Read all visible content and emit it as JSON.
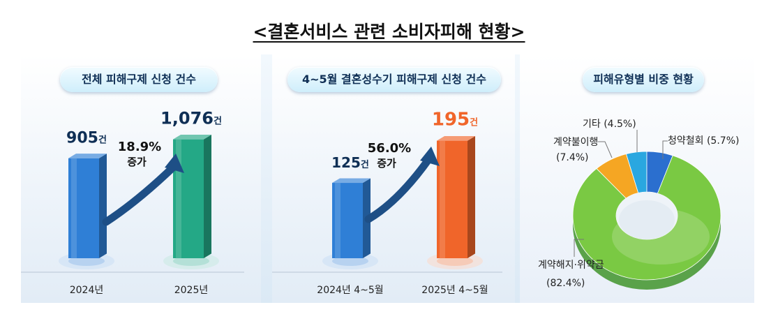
{
  "title": "<결혼서비스 관련 소비자피해 현황>",
  "colors": {
    "blue_bar": "#2f7fd6",
    "green_bar": "#24a886",
    "orange_bar": "#f0652a",
    "arrow": "#1e4f86",
    "text_dark": "#0f2f55"
  },
  "chart_data": [
    {
      "type": "bar",
      "title": "전체 피해구제 신청 건수",
      "categories": [
        "2024년",
        "2025년"
      ],
      "values": [
        905,
        1076
      ],
      "value_labels": [
        "905건",
        "1,076건"
      ],
      "annotation": {
        "pct": "18.9%",
        "word": "증가"
      },
      "ylim": [
        0,
        1200
      ]
    },
    {
      "type": "bar",
      "title": "4~5월 결혼성수기 피해구제 신청 건수",
      "categories": [
        "2024년 4~5월",
        "2025년 4~5월"
      ],
      "values": [
        125,
        195
      ],
      "value_labels": [
        "125건",
        "195건"
      ],
      "annotation": {
        "pct": "56.0%",
        "word": "증가"
      },
      "ylim": [
        0,
        220
      ]
    },
    {
      "type": "pie",
      "title": "피해유형별 비중 현황",
      "slices": [
        {
          "label": "계약해지·위약금",
          "value": 82.4,
          "value_label": "(82.4%)",
          "color": "#7ac943"
        },
        {
          "label": "계약불이행",
          "value": 7.4,
          "value_label": "(7.4%)",
          "color": "#f5a623"
        },
        {
          "label": "기타",
          "value": 4.5,
          "value_label": "(4.5%)",
          "color": "#2aa7e0"
        },
        {
          "label": "청약철회",
          "value": 5.7,
          "value_label": "(5.7%)",
          "color": "#2b6fcf"
        }
      ]
    }
  ]
}
